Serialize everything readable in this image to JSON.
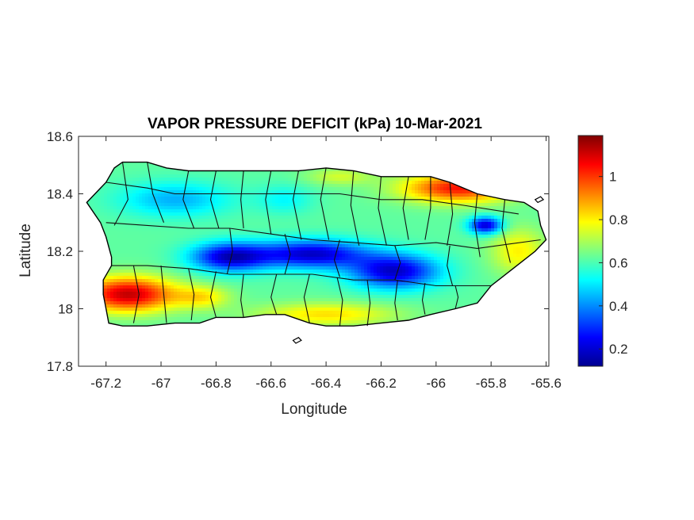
{
  "chart_data": {
    "type": "heatmap",
    "title": "VAPOR PRESSURE DEFICIT (kPa) 10-Mar-2021",
    "xlabel": "Longitude",
    "ylabel": "Latitude",
    "xlim": [
      -67.3,
      -65.59
    ],
    "ylim": [
      17.8,
      18.6
    ],
    "xticks": [
      -67.2,
      -67,
      -66.8,
      -66.6,
      -66.4,
      -66.2,
      -66,
      -65.8,
      -65.6
    ],
    "xtick_labels": [
      "-67.2",
      "-67",
      "-66.8",
      "-66.6",
      "-66.4",
      "-66.2",
      "-66",
      "-65.8",
      "-65.6"
    ],
    "yticks": [
      17.8,
      18,
      18.2,
      18.4,
      18.6
    ],
    "ytick_labels": [
      "17.8",
      "18",
      "18.2",
      "18.4",
      "18.6"
    ],
    "colormap": "jet",
    "colorbar": {
      "range": [
        0.12,
        1.19
      ],
      "ticks": [
        0.2,
        0.4,
        0.6,
        0.8,
        1
      ],
      "tick_labels": [
        "0.2",
        "0.4",
        "0.6",
        "0.8",
        "1"
      ]
    },
    "island_outline": [
      [
        -67.27,
        18.37
      ],
      [
        -67.24,
        18.4
      ],
      [
        -67.2,
        18.44
      ],
      [
        -67.17,
        18.49
      ],
      [
        -67.14,
        18.51
      ],
      [
        -67.05,
        18.51
      ],
      [
        -66.98,
        18.49
      ],
      [
        -66.9,
        18.48
      ],
      [
        -66.8,
        18.48
      ],
      [
        -66.7,
        18.48
      ],
      [
        -66.6,
        18.48
      ],
      [
        -66.5,
        18.48
      ],
      [
        -66.4,
        18.49
      ],
      [
        -66.3,
        18.48
      ],
      [
        -66.2,
        18.46
      ],
      [
        -66.1,
        18.46
      ],
      [
        -66.02,
        18.46
      ],
      [
        -65.95,
        18.44
      ],
      [
        -65.85,
        18.4
      ],
      [
        -65.75,
        18.38
      ],
      [
        -65.68,
        18.37
      ],
      [
        -65.63,
        18.34
      ],
      [
        -65.62,
        18.29
      ],
      [
        -65.6,
        18.24
      ],
      [
        -65.64,
        18.2
      ],
      [
        -65.72,
        18.14
      ],
      [
        -65.8,
        18.08
      ],
      [
        -65.85,
        18.02
      ],
      [
        -65.93,
        18.0
      ],
      [
        -66.02,
        17.98
      ],
      [
        -66.1,
        17.96
      ],
      [
        -66.2,
        17.95
      ],
      [
        -66.3,
        17.94
      ],
      [
        -66.4,
        17.94
      ],
      [
        -66.46,
        17.95
      ],
      [
        -66.55,
        17.98
      ],
      [
        -66.62,
        17.98
      ],
      [
        -66.7,
        17.97
      ],
      [
        -66.8,
        17.97
      ],
      [
        -66.86,
        17.95
      ],
      [
        -66.95,
        17.95
      ],
      [
        -67.05,
        17.94
      ],
      [
        -67.14,
        17.94
      ],
      [
        -67.19,
        17.95
      ],
      [
        -67.2,
        18.0
      ],
      [
        -67.21,
        18.05
      ],
      [
        -67.21,
        18.1
      ],
      [
        -67.18,
        18.15
      ],
      [
        -67.18,
        18.18
      ],
      [
        -67.2,
        18.25
      ],
      [
        -67.22,
        18.3
      ],
      [
        -67.27,
        18.37
      ]
    ],
    "islets": [
      [
        [
          -66.52,
          17.89
        ],
        [
          -66.5,
          17.9
        ],
        [
          -66.49,
          17.89
        ],
        [
          -66.51,
          17.88
        ],
        [
          -66.52,
          17.89
        ]
      ],
      [
        [
          -65.64,
          18.38
        ],
        [
          -65.62,
          18.39
        ],
        [
          -65.61,
          18.38
        ],
        [
          -65.63,
          18.37
        ],
        [
          -65.64,
          18.38
        ]
      ]
    ],
    "value_field": {
      "background": 0.62,
      "anomalies": [
        {
          "lon": -66.75,
          "lat": 18.18,
          "amp": -0.42,
          "rlon": 0.14,
          "rlat": 0.05
        },
        {
          "lon": -66.45,
          "lat": 18.19,
          "amp": -0.42,
          "rlon": 0.2,
          "rlat": 0.05
        },
        {
          "lon": -66.15,
          "lat": 18.13,
          "amp": -0.42,
          "rlon": 0.16,
          "rlat": 0.06
        },
        {
          "lon": -65.82,
          "lat": 18.29,
          "amp": -0.42,
          "rlon": 0.06,
          "rlat": 0.03
        },
        {
          "lon": -67.12,
          "lat": 18.05,
          "amp": 0.5,
          "rlon": 0.17,
          "rlat": 0.06
        },
        {
          "lon": -66.85,
          "lat": 18.04,
          "amp": 0.18,
          "rlon": 0.1,
          "rlat": 0.04
        },
        {
          "lon": -65.92,
          "lat": 18.42,
          "amp": 0.42,
          "rlon": 0.2,
          "rlat": 0.05
        },
        {
          "lon": -66.35,
          "lat": 18.46,
          "amp": 0.12,
          "rlon": 0.12,
          "rlat": 0.03
        },
        {
          "lon": -66.4,
          "lat": 17.98,
          "amp": 0.2,
          "rlon": 0.25,
          "rlat": 0.04
        },
        {
          "lon": -65.7,
          "lat": 18.2,
          "amp": 0.18,
          "rlon": 0.1,
          "rlat": 0.08
        },
        {
          "lon": -66.95,
          "lat": 18.38,
          "amp": -0.18,
          "rlon": 0.2,
          "rlat": 0.06
        },
        {
          "lon": -66.55,
          "lat": 18.38,
          "amp": -0.1,
          "rlon": 0.1,
          "rlat": 0.05
        }
      ]
    },
    "municipal_borders": [
      [
        [
          -67.14,
          18.51
        ],
        [
          -67.12,
          18.38
        ],
        [
          -67.17,
          18.29
        ]
      ],
      [
        [
          -67.05,
          18.51
        ],
        [
          -67.03,
          18.4
        ],
        [
          -66.99,
          18.3
        ]
      ],
      [
        [
          -66.9,
          18.48
        ],
        [
          -66.92,
          18.38
        ],
        [
          -66.88,
          18.28
        ]
      ],
      [
        [
          -66.8,
          18.48
        ],
        [
          -66.82,
          18.38
        ],
        [
          -66.79,
          18.28
        ]
      ],
      [
        [
          -66.7,
          18.48
        ],
        [
          -66.71,
          18.38
        ],
        [
          -66.7,
          18.28
        ]
      ],
      [
        [
          -66.6,
          18.48
        ],
        [
          -66.62,
          18.38
        ],
        [
          -66.6,
          18.26
        ]
      ],
      [
        [
          -66.5,
          18.48
        ],
        [
          -66.52,
          18.38
        ],
        [
          -66.49,
          18.24
        ]
      ],
      [
        [
          -66.4,
          18.49
        ],
        [
          -66.42,
          18.38
        ],
        [
          -66.39,
          18.24
        ]
      ],
      [
        [
          -66.3,
          18.48
        ],
        [
          -66.31,
          18.36
        ],
        [
          -66.28,
          18.22
        ]
      ],
      [
        [
          -66.2,
          18.46
        ],
        [
          -66.21,
          18.35
        ],
        [
          -66.18,
          18.22
        ]
      ],
      [
        [
          -66.1,
          18.46
        ],
        [
          -66.12,
          18.35
        ],
        [
          -66.1,
          18.24
        ]
      ],
      [
        [
          -66.02,
          18.46
        ],
        [
          -66.02,
          18.35
        ],
        [
          -66.04,
          18.24
        ]
      ],
      [
        [
          -65.95,
          18.44
        ],
        [
          -65.94,
          18.33
        ],
        [
          -65.96,
          18.22
        ]
      ],
      [
        [
          -65.85,
          18.4
        ],
        [
          -65.86,
          18.3
        ],
        [
          -65.84,
          18.18
        ]
      ],
      [
        [
          -65.75,
          18.38
        ],
        [
          -65.76,
          18.28
        ],
        [
          -65.73,
          18.16
        ]
      ],
      [
        [
          -67.2,
          18.3
        ],
        [
          -67.05,
          18.29
        ],
        [
          -66.9,
          18.28
        ],
        [
          -66.75,
          18.28
        ],
        [
          -66.6,
          18.26
        ],
        [
          -66.45,
          18.24
        ],
        [
          -66.3,
          18.23
        ],
        [
          -66.15,
          18.22
        ],
        [
          -66.0,
          18.23
        ],
        [
          -65.85,
          18.21
        ],
        [
          -65.62,
          18.24
        ]
      ],
      [
        [
          -67.18,
          18.15
        ],
        [
          -67.05,
          18.15
        ],
        [
          -66.9,
          18.14
        ],
        [
          -66.75,
          18.12
        ],
        [
          -66.6,
          18.12
        ],
        [
          -66.45,
          18.12
        ],
        [
          -66.3,
          18.1
        ],
        [
          -66.15,
          18.1
        ],
        [
          -66.0,
          18.08
        ],
        [
          -65.8,
          18.08
        ]
      ],
      [
        [
          -67.1,
          18.15
        ],
        [
          -67.08,
          18.05
        ],
        [
          -67.1,
          17.95
        ]
      ],
      [
        [
          -67.0,
          18.15
        ],
        [
          -66.99,
          18.05
        ],
        [
          -66.98,
          17.95
        ]
      ],
      [
        [
          -66.9,
          18.14
        ],
        [
          -66.88,
          18.05
        ],
        [
          -66.89,
          17.96
        ]
      ],
      [
        [
          -66.8,
          18.13
        ],
        [
          -66.82,
          18.04
        ],
        [
          -66.8,
          17.97
        ]
      ],
      [
        [
          -66.7,
          18.12
        ],
        [
          -66.71,
          18.03
        ],
        [
          -66.7,
          17.97
        ]
      ],
      [
        [
          -66.58,
          18.12
        ],
        [
          -66.6,
          18.04
        ],
        [
          -66.58,
          17.98
        ]
      ],
      [
        [
          -66.46,
          18.12
        ],
        [
          -66.48,
          18.04
        ],
        [
          -66.46,
          17.95
        ]
      ],
      [
        [
          -66.36,
          18.11
        ],
        [
          -66.34,
          18.03
        ],
        [
          -66.35,
          17.94
        ]
      ],
      [
        [
          -66.25,
          18.1
        ],
        [
          -66.24,
          18.02
        ],
        [
          -66.25,
          17.94
        ]
      ],
      [
        [
          -66.14,
          18.1
        ],
        [
          -66.15,
          18.02
        ],
        [
          -66.14,
          17.96
        ]
      ],
      [
        [
          -66.04,
          18.09
        ],
        [
          -66.05,
          18.03
        ],
        [
          -66.04,
          17.98
        ]
      ],
      [
        [
          -65.93,
          18.08
        ],
        [
          -65.92,
          18.04
        ],
        [
          -65.93,
          18.0
        ]
      ],
      [
        [
          -66.75,
          18.28
        ],
        [
          -66.74,
          18.2
        ],
        [
          -66.76,
          18.12
        ]
      ],
      [
        [
          -66.55,
          18.26
        ],
        [
          -66.53,
          18.19
        ],
        [
          -66.55,
          18.12
        ]
      ],
      [
        [
          -66.35,
          18.24
        ],
        [
          -66.37,
          18.17
        ],
        [
          -66.35,
          18.11
        ]
      ],
      [
        [
          -66.15,
          18.22
        ],
        [
          -66.13,
          18.16
        ],
        [
          -66.15,
          18.1
        ]
      ],
      [
        [
          -65.95,
          18.22
        ],
        [
          -65.96,
          18.15
        ],
        [
          -65.94,
          18.08
        ]
      ],
      [
        [
          -67.2,
          18.44
        ],
        [
          -67.05,
          18.42
        ],
        [
          -66.95,
          18.4
        ],
        [
          -66.8,
          18.4
        ],
        [
          -66.65,
          18.4
        ],
        [
          -66.5,
          18.4
        ],
        [
          -66.35,
          18.4
        ],
        [
          -66.2,
          18.38
        ],
        [
          -66.05,
          18.38
        ],
        [
          -65.9,
          18.36
        ],
        [
          -65.7,
          18.33
        ]
      ]
    ]
  }
}
